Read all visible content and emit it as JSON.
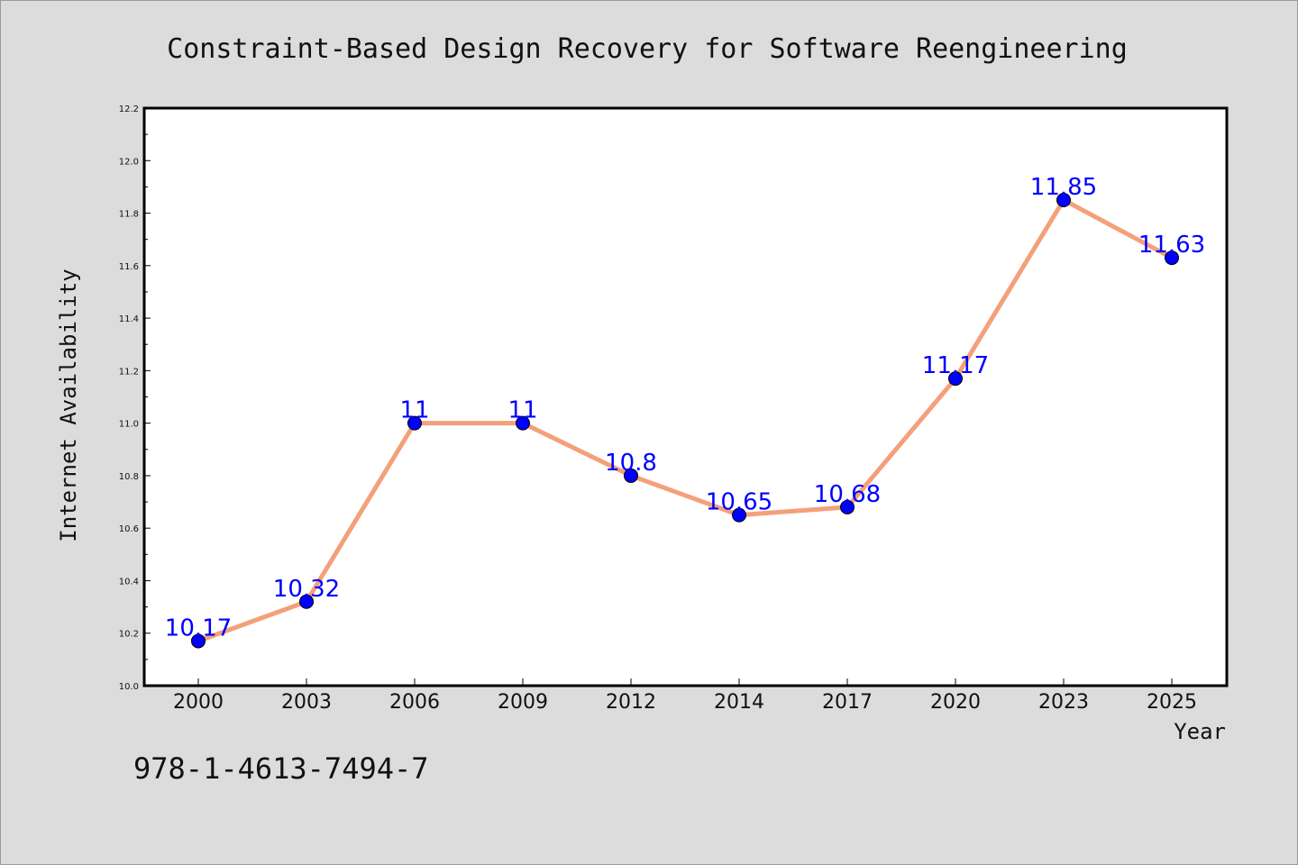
{
  "chart_data": {
    "type": "line",
    "title": "Constraint-Based Design Recovery for Software Reengineering",
    "xlabel": "Year",
    "ylabel": "Internet Availability",
    "categories": [
      "2000",
      "2003",
      "2006",
      "2009",
      "2012",
      "2014",
      "2017",
      "2020",
      "2023",
      "2025"
    ],
    "series": [
      {
        "values": [
          10.17,
          10.32,
          11,
          11,
          10.8,
          10.65,
          10.68,
          11.17,
          11.85,
          11.63
        ],
        "data_labels": [
          "10.17",
          "10.32",
          "11",
          "11",
          "10.8",
          "10.65",
          "10.68",
          "11.17",
          "11.85",
          "11.63"
        ],
        "line_color": "#f4a07a",
        "marker_color": "#0000ff"
      }
    ],
    "ylim": [
      10.0,
      12.2
    ],
    "yticks": [
      "10.0",
      "10.2",
      "10.4",
      "10.6",
      "10.8",
      "11.0",
      "11.2",
      "11.4",
      "11.6",
      "11.8",
      "12.0",
      "12.2"
    ],
    "grid": false,
    "label_color": "#0000ff"
  },
  "footer_text": "978-1-4613-7494-7"
}
